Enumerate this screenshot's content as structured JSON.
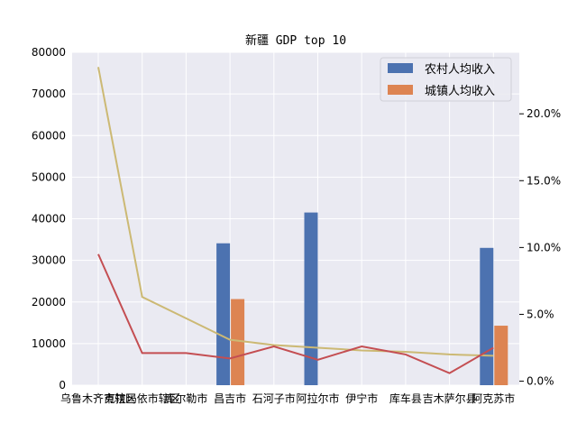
{
  "chart_data": {
    "type": "bar",
    "title": "新疆 GDP top 10",
    "categories": [
      "乌鲁木齐市辖区",
      "克拉玛依市辖区",
      "库尔勒市",
      "昌吉市",
      "石河子市",
      "阿拉尔市",
      "伊宁市",
      "库车县",
      "吉木萨尔县",
      "阿克苏市"
    ],
    "series": [
      {
        "name": "农村人均收入",
        "kind": "bar",
        "axis": "left",
        "color": "#4c72b0",
        "values": [
          0,
          0,
          0,
          34100,
          0,
          41500,
          0,
          0,
          0,
          33000
        ]
      },
      {
        "name": "城镇人均收入",
        "kind": "bar",
        "axis": "left",
        "color": "#dd8452",
        "values": [
          0,
          0,
          0,
          20700,
          0,
          0,
          0,
          0,
          0,
          14300
        ]
      },
      {
        "name": "",
        "kind": "line",
        "axis": "right",
        "color": "#ccb974",
        "values": [
          23.5,
          6.3,
          4.7,
          3.1,
          2.7,
          2.5,
          2.3,
          2.2,
          2.0,
          1.9
        ]
      },
      {
        "name": "",
        "kind": "line",
        "axis": "right",
        "color": "#c44e52",
        "values": [
          9.5,
          2.1,
          2.1,
          1.7,
          2.6,
          1.6,
          2.6,
          2.0,
          0.6,
          2.5
        ]
      }
    ],
    "ylim": [
      0,
      80000
    ],
    "yticks": [
      "0",
      "10000",
      "20000",
      "30000",
      "40000",
      "50000",
      "60000",
      "70000",
      "80000"
    ],
    "y2lim": [
      -0.3,
      24.6
    ],
    "y2ticks": [
      0,
      5,
      10,
      15,
      20
    ],
    "y2tick_labels": [
      "0.0%",
      "5.0%",
      "10.0%",
      "15.0%",
      "20.0%"
    ],
    "grid": true,
    "legend": "top-right",
    "background": "#eaeaf2"
  }
}
